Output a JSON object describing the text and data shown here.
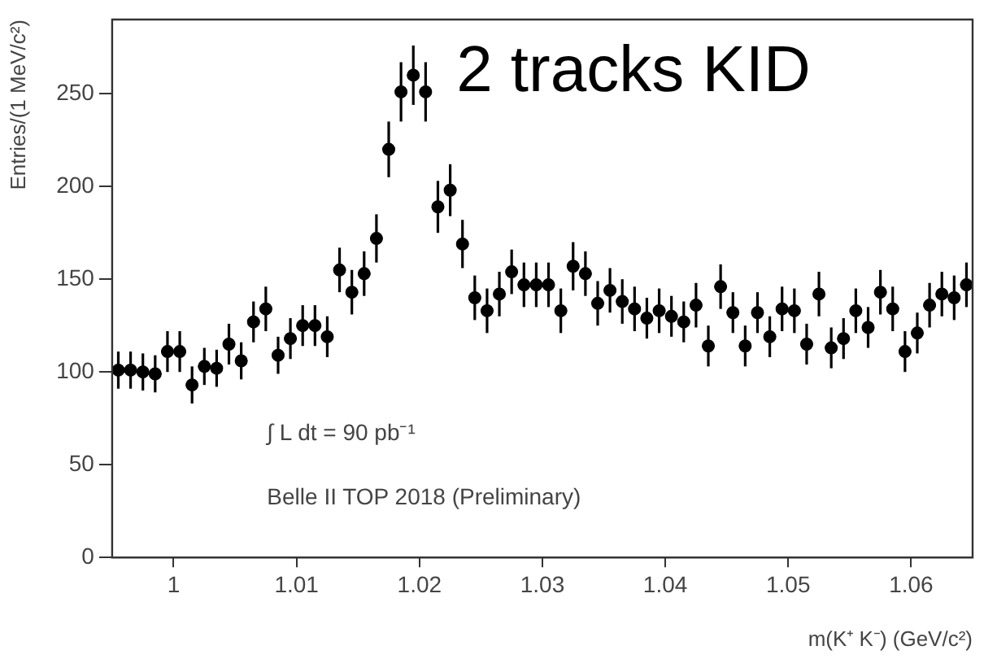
{
  "chart_data": {
    "type": "scatter",
    "xlabel": "m(K⁺ K⁻) (GeV/c²)",
    "ylabel": "Entries/(1 MeV/c²)",
    "annotations": [
      "2 tracks KID",
      "∫ L dt = 90 pb⁻¹",
      "Belle II TOP 2018 (Preliminary)"
    ],
    "x": [
      0.9955,
      0.9965,
      0.9975,
      0.9985,
      0.9995,
      1.0005,
      1.0015,
      1.0025,
      1.0035,
      1.0045,
      1.0055,
      1.0065,
      1.0075,
      1.0085,
      1.0095,
      1.0105,
      1.0115,
      1.0125,
      1.0135,
      1.0145,
      1.0155,
      1.0165,
      1.0175,
      1.0185,
      1.0195,
      1.0205,
      1.0215,
      1.0225,
      1.0235,
      1.0245,
      1.0255,
      1.0265,
      1.0275,
      1.0285,
      1.0295,
      1.0305,
      1.0315,
      1.0325,
      1.0335,
      1.0345,
      1.0355,
      1.0365,
      1.0375,
      1.0385,
      1.0395,
      1.0405,
      1.0415,
      1.0425,
      1.0435,
      1.0445,
      1.0455,
      1.0465,
      1.0475,
      1.0485,
      1.0495,
      1.0505,
      1.0515,
      1.0525,
      1.0535,
      1.0545,
      1.0555,
      1.0565,
      1.0575,
      1.0585,
      1.0595,
      1.0605,
      1.0615,
      1.0625,
      1.0635,
      1.0645
    ],
    "values": [
      101,
      101,
      100,
      99,
      111,
      111,
      93,
      103,
      102,
      115,
      106,
      127,
      134,
      109,
      118,
      125,
      125,
      119,
      155,
      143,
      153,
      172,
      220,
      251,
      260,
      251,
      189,
      198,
      169,
      140,
      133,
      142,
      154,
      147,
      147,
      147,
      133,
      157,
      153,
      137,
      144,
      138,
      134,
      129,
      133,
      130,
      127,
      136,
      114,
      146,
      132,
      114,
      132,
      119,
      134,
      133,
      115,
      142,
      113,
      118,
      133,
      124,
      143,
      134,
      111,
      121,
      136,
      142,
      140,
      147
    ],
    "errors": [
      10,
      10,
      10,
      10,
      11,
      11,
      10,
      10,
      10,
      11,
      10,
      11,
      12,
      10,
      11,
      11,
      11,
      11,
      12,
      12,
      12,
      13,
      15,
      16,
      16,
      16,
      14,
      14,
      13,
      12,
      12,
      12,
      12,
      12,
      12,
      12,
      12,
      13,
      12,
      12,
      12,
      12,
      12,
      11,
      12,
      11,
      11,
      12,
      11,
      12,
      11,
      11,
      11,
      11,
      12,
      12,
      11,
      12,
      11,
      11,
      12,
      11,
      12,
      12,
      11,
      11,
      12,
      12,
      12,
      12
    ],
    "xerrors": [
      0.0005,
      0.0005,
      0.0005,
      0.0005,
      0.0005,
      0.0005,
      0.0005,
      0.0005,
      0.0005,
      0.0005,
      0.0005,
      0.0005,
      0.0005,
      0.0005,
      0.0005,
      0.0005,
      0.0005,
      0.0005,
      0.0005,
      0.0005,
      0.0005,
      0.0005,
      0.0005,
      0.0005,
      0.0005,
      0.0005,
      0.0005,
      0.0005,
      0.0005,
      0.0005,
      0.0005,
      0.0005,
      0.0005,
      0.0005,
      0.0005,
      0.0005,
      0.0005,
      0.0005,
      0.0005,
      0.0005,
      0.0005,
      0.0005,
      0.0005,
      0.0005,
      0.0005,
      0.0005,
      0.0005,
      0.0005,
      0.0005,
      0.0005,
      0.0005,
      0.0005,
      0.0005,
      0.0005,
      0.0005,
      0.0005,
      0.0005,
      0.0005,
      0.0005,
      0.0005,
      0.0005,
      0.0005,
      0.0005,
      0.0005,
      0.0005,
      0.0005,
      0.0005,
      0.0005,
      0.0005,
      0.0005
    ],
    "color": "#000000",
    "marker": "circle",
    "xlim": [
      0.995,
      1.065
    ],
    "xticks": [
      1,
      1.01,
      1.02,
      1.03,
      1.04,
      1.05,
      1.06
    ],
    "ylim": [
      0,
      290
    ],
    "yticks": [
      0,
      50,
      100,
      150,
      200,
      250
    ],
    "grid": false,
    "legend": false
  }
}
